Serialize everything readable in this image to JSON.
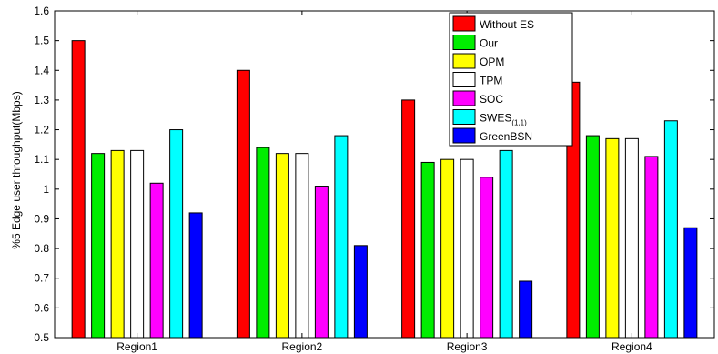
{
  "chart_data": {
    "type": "bar",
    "ylabel": "%5 Edge user throughput(Mbps)",
    "xlabel": "",
    "title": "",
    "ylim": [
      0.5,
      1.6
    ],
    "yticks": [
      "0.5",
      "0.6",
      "0.7",
      "0.8",
      "0.9",
      "1",
      "1.1",
      "1.2",
      "1.3",
      "1.4",
      "1.5",
      "1.6"
    ],
    "categories": [
      "Region1",
      "Region2",
      "Region3",
      "Region4"
    ],
    "legend_position": "top-right",
    "grid": false,
    "series": [
      {
        "name": "Without ES",
        "subscript": "",
        "color": "#ff0000",
        "values": [
          1.5,
          1.4,
          1.3,
          1.36
        ]
      },
      {
        "name": "Our",
        "subscript": "",
        "color": "#00ee00",
        "values": [
          1.12,
          1.14,
          1.09,
          1.18
        ]
      },
      {
        "name": "OPM",
        "subscript": "",
        "color": "#ffff00",
        "values": [
          1.13,
          1.12,
          1.1,
          1.17
        ]
      },
      {
        "name": "TPM",
        "subscript": "",
        "color": "#ffffff",
        "values": [
          1.13,
          1.12,
          1.1,
          1.17
        ]
      },
      {
        "name": "SOC",
        "subscript": "",
        "color": "#ff00ff",
        "values": [
          1.02,
          1.01,
          1.04,
          1.11
        ]
      },
      {
        "name": "SWES",
        "subscript": "(1,1)",
        "color": "#00ffff",
        "values": [
          1.2,
          1.18,
          1.13,
          1.23
        ]
      },
      {
        "name": "GreenBSN",
        "subscript": "",
        "color": "#0000ff",
        "values": [
          0.92,
          0.81,
          0.69,
          0.87
        ]
      }
    ]
  }
}
